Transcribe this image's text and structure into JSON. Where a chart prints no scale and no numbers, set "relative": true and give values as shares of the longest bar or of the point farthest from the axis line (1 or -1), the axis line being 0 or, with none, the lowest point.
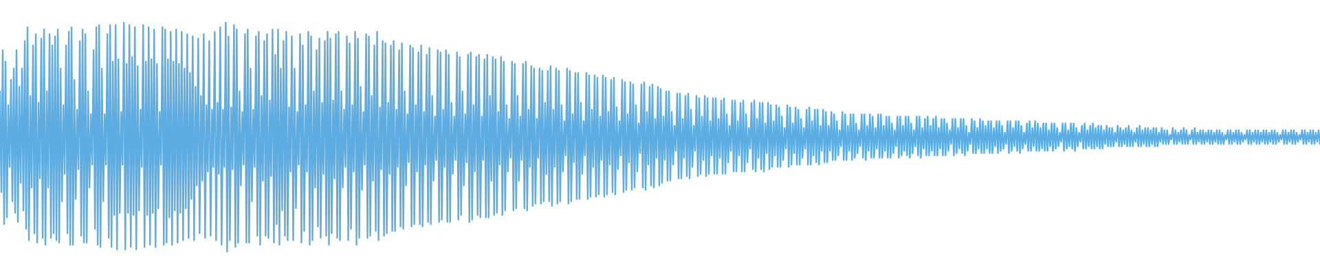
{
  "chart_data": {
    "type": "line",
    "relative": true,
    "color": "#5dade2",
    "categories": [
      null,
      null,
      null,
      null,
      null,
      null,
      null,
      null,
      null,
      null,
      null,
      null,
      null,
      null,
      null,
      null,
      null,
      null,
      null,
      null,
      null,
      null,
      null,
      null,
      null,
      null,
      null,
      null,
      null,
      null,
      null,
      null,
      null,
      null,
      null,
      null,
      null,
      null,
      null,
      null,
      null,
      null,
      null,
      null,
      null,
      null,
      null,
      null,
      null,
      null,
      null,
      null,
      null,
      null,
      null,
      null,
      null,
      null,
      null,
      null,
      null,
      null,
      null,
      null,
      null,
      null,
      null,
      null,
      null,
      null,
      null,
      null,
      null,
      null,
      null,
      null,
      null,
      null,
      null,
      null,
      null,
      null,
      null,
      null,
      null,
      null,
      null,
      null,
      null,
      null,
      null,
      null,
      null,
      null,
      null,
      null,
      null,
      null,
      null,
      null,
      null,
      null,
      null,
      null,
      null,
      null,
      null,
      null,
      null,
      null,
      null,
      null,
      null,
      null,
      null,
      null,
      null,
      null,
      null,
      null,
      null,
      null,
      null,
      null,
      null,
      null,
      null,
      null,
      null,
      null,
      null,
      null,
      null,
      null,
      null,
      null,
      null,
      null,
      null,
      null,
      null,
      null,
      null,
      null,
      null,
      null,
      null,
      null,
      null,
      null,
      null,
      null,
      null,
      null,
      null,
      null,
      null,
      null,
      null,
      null,
      null,
      null,
      null,
      null,
      null,
      null,
      null,
      null,
      null,
      null,
      null,
      null,
      null,
      null,
      null,
      null,
      null,
      null,
      null,
      null,
      null,
      null,
      null,
      null,
      null,
      null,
      null,
      null,
      null,
      null,
      null,
      null,
      null,
      null,
      null,
      null,
      null,
      null,
      null,
      null,
      null,
      null,
      null,
      null,
      null,
      null,
      null,
      null,
      null,
      null,
      null,
      null,
      null,
      null,
      null,
      null,
      null,
      null,
      null,
      null,
      null,
      null,
      null,
      null,
      null,
      null,
      null,
      null,
      null,
      null,
      null,
      null,
      null,
      null,
      null,
      null,
      null,
      null,
      null,
      null,
      null,
      null,
      null,
      null,
      null,
      null,
      null,
      null,
      null,
      null,
      null,
      null,
      null,
      null,
      null,
      null,
      null,
      null,
      null,
      null,
      null,
      null,
      null,
      null,
      null,
      null,
      null,
      null,
      null,
      null,
      null,
      null,
      null,
      null,
      null,
      null,
      null,
      null,
      null,
      null,
      null,
      null,
      null,
      null,
      null,
      null,
      null,
      null,
      null,
      null,
      null,
      null,
      null,
      null,
      null,
      null,
      null,
      null,
      null,
      null,
      null,
      null,
      null,
      null,
      null,
      null,
      null,
      null,
      null,
      null,
      null,
      null,
      null,
      null,
      null,
      null,
      null,
      null,
      null,
      null,
      null,
      null,
      null,
      null,
      null,
      null,
      null,
      null,
      null,
      null,
      null,
      null,
      null,
      null,
      null,
      null,
      null,
      null,
      null,
      null,
      null,
      null,
      null,
      null,
      null,
      null,
      null,
      null,
      null,
      null,
      null,
      null,
      null,
      null,
      null,
      null,
      null,
      null,
      null,
      null,
      null,
      null,
      null,
      null,
      null,
      null,
      null,
      null,
      null,
      null,
      null,
      null,
      null,
      null,
      null,
      null,
      null,
      null,
      null,
      null,
      null,
      null,
      null,
      null,
      null,
      null,
      null,
      null,
      null,
      null,
      null,
      null,
      null,
      null,
      null,
      null,
      null,
      null,
      null,
      null,
      null,
      null,
      null,
      null,
      null,
      null,
      null,
      null,
      null,
      null,
      null,
      null,
      null,
      null,
      null,
      null,
      null,
      null,
      null,
      null,
      null,
      null,
      null,
      null,
      null,
      null,
      null,
      null,
      null,
      null,
      null,
      null,
      null,
      null,
      null,
      null,
      null,
      null,
      null,
      null,
      null,
      null,
      null,
      null,
      null,
      null,
      null,
      null,
      null,
      null,
      null,
      null,
      null,
      null,
      null,
      null,
      null,
      null,
      null,
      null,
      null,
      null,
      null,
      null,
      null,
      null,
      null,
      null,
      null,
      null,
      null,
      null,
      null,
      null,
      null,
      null,
      null,
      null,
      null,
      null,
      null,
      null,
      null,
      null,
      null,
      null,
      null,
      null,
      null,
      null,
      null,
      null,
      null,
      null,
      null,
      null,
      null,
      null,
      null,
      null,
      null,
      null,
      null,
      null,
      null,
      null,
      null,
      null,
      null,
      null,
      null,
      null,
      null,
      null,
      null,
      null,
      null,
      null,
      null,
      null,
      null,
      null,
      null,
      null,
      null,
      null,
      null,
      null,
      null,
      null,
      null,
      null,
      null,
      null,
      null,
      null,
      null,
      null,
      null,
      null,
      null,
      null,
      null,
      null,
      null,
      null,
      null,
      null,
      null,
      null,
      null,
      null,
      null,
      null,
      null,
      null,
      null,
      null,
      null,
      null,
      null,
      null,
      null,
      null,
      null,
      null,
      null,
      null,
      null,
      null,
      null,
      null,
      null,
      null,
      null,
      null,
      null,
      null,
      null,
      null,
      null,
      null,
      null,
      null,
      null,
      null,
      null,
      null,
      null,
      null,
      null,
      null,
      null,
      null,
      null,
      null,
      null,
      null,
      null,
      null,
      null,
      null,
      null,
      null,
      null,
      null,
      null,
      null,
      null,
      null,
      null,
      null,
      null,
      null,
      null,
      null,
      null,
      null,
      null,
      null,
      null,
      null,
      null,
      null,
      null,
      null,
      null,
      null,
      null,
      null,
      null,
      null,
      null,
      null,
      null,
      null,
      null,
      null,
      null,
      null,
      null,
      null,
      null,
      null,
      null,
      null,
      null,
      null,
      null,
      null,
      null,
      null,
      null,
      null,
      null,
      null,
      null,
      null,
      null,
      null,
      null,
      null,
      null,
      null,
      null,
      null,
      null,
      null,
      null,
      null,
      null,
      null,
      null,
      null,
      null,
      null,
      null,
      null,
      null,
      null,
      null,
      null,
      null,
      null,
      null,
      null,
      null,
      null,
      null,
      null,
      null,
      null,
      null,
      null,
      null,
      null,
      null,
      null,
      null,
      null,
      null,
      null,
      null,
      null,
      null,
      null,
      null,
      null,
      null,
      null,
      null,
      null,
      null,
      null,
      null,
      null,
      null,
      null,
      null,
      null,
      null,
      null,
      null,
      null,
      null,
      null,
      null,
      null,
      null,
      null,
      null,
      null,
      null,
      null,
      null,
      null,
      null,
      null,
      null,
      null,
      null,
      null,
      null,
      null,
      null,
      null,
      null,
      null,
      null,
      null,
      null,
      null,
      null,
      null,
      null,
      null,
      null,
      null,
      null,
      null,
      null,
      null,
      null,
      null,
      null,
      null,
      null,
      null,
      null,
      null,
      null,
      null,
      null,
      null,
      null,
      null,
      null,
      null,
      null,
      null,
      null,
      null,
      null,
      null,
      null,
      null,
      null,
      null,
      null,
      null,
      null,
      null,
      null,
      null,
      null,
      null,
      null,
      null,
      null,
      null,
      null,
      null,
      null,
      null,
      null,
      null,
      null,
      null,
      null,
      null,
      null,
      null,
      null,
      null,
      null,
      null,
      null,
      null,
      null,
      null,
      null,
      null,
      null,
      null,
      null,
      null,
      null,
      null,
      null,
      null,
      null,
      null,
      null,
      null,
      null,
      null,
      null,
      null,
      null,
      null,
      null,
      null,
      null,
      null,
      null,
      null,
      null,
      null,
      null,
      null,
      null,
      null,
      null,
      null,
      null,
      null,
      null,
      null,
      null,
      null,
      null,
      null,
      null,
      null,
      null,
      null,
      null,
      null,
      null,
      null,
      null,
      null,
      null,
      null,
      null,
      null,
      null,
      null,
      null,
      null,
      null,
      null,
      null,
      null,
      null,
      null,
      null,
      null,
      null,
      null,
      null,
      null,
      null,
      null,
      null,
      null,
      null,
      null,
      null,
      null,
      null,
      null,
      null,
      null,
      null,
      null,
      null,
      null,
      null,
      null,
      null,
      null,
      null,
      null,
      null,
      null,
      null,
      null,
      null,
      null,
      null,
      null,
      null,
      null,
      null,
      null,
      null,
      null,
      null,
      null,
      null,
      null,
      null,
      null,
      null,
      null,
      null,
      null,
      null,
      null,
      null,
      null,
      null,
      null,
      null,
      null,
      null,
      null,
      null,
      null,
      null,
      null,
      null,
      null,
      null,
      null,
      null,
      null,
      null,
      null
    ],
    "values": [
      0.7,
      0.26,
      0.88,
      0.12,
      0.83,
      0.15,
      0.64,
      0.37,
      0.75,
      0.22,
      0.8,
      0.17,
      0.88,
      0.13,
      0.72,
      0.3,
      0.8,
      0.18,
      0.92,
      0.1,
      0.98,
      0.05,
      0.68,
      0.28,
      0.9,
      0.08,
      0.95,
      0.04,
      0.65,
      0.32,
      0.93,
      0.06,
      0.97,
      0.03,
      0.7,
      0.28,
      0.95,
      0.06,
      0.9,
      0.08,
      0.94,
      0.05,
      0.97,
      0.04,
      0.8,
      0.22,
      0.64,
      0.34,
      0.9,
      0.08,
      0.96,
      0.03,
      0.98,
      0.03,
      0.75,
      0.23,
      0.62,
      0.36,
      0.92,
      0.07,
      0.97,
      0.04,
      0.95,
      0.04,
      0.7,
      0.28,
      0.6,
      0.38,
      0.88,
      0.1,
      0.98,
      0.03,
      0.99,
      0.02,
      0.8,
      0.22,
      0.6,
      0.38,
      0.95,
      0.06,
      0.99,
      0.02,
      0.83,
      0.16,
      0.99,
      0.01,
      0.84,
      0.17,
      0.61,
      0.38,
      1,
      0.01,
      0.82,
      0.17,
      0.99,
      0.02,
      0.85,
      0.16,
      0.98,
      0.01,
      0.81,
      0.18,
      0.62,
      0.37,
      0.99,
      0.02,
      0.83,
      0.16,
      0.98,
      0.03,
      0.84,
      0.17,
      0.97,
      0.02,
      0.82,
      0.19,
      0.61,
      0.38,
      0.98,
      0.03,
      0.97,
      0.04,
      0.84,
      0.15,
      0.96,
      0.03,
      0.83,
      0.18,
      0.97,
      0.04,
      0.82,
      0.17,
      0.96,
      0.05,
      0.8,
      0.19,
      0.95,
      0.06,
      0.78,
      0.23,
      0.94,
      0.05,
      0.72,
      0.29,
      0.93,
      0.08,
      0.68,
      0.31,
      0.95,
      0.06,
      0.64,
      0.35,
      0.92,
      0.07,
      0.62,
      0.37,
      0.96,
      0.05,
      0.65,
      0.34,
      0.98,
      0.03,
      0.62,
      0.37,
      1,
      0,
      0.94,
      0.05,
      0.63,
      0.36,
      0.99,
      0.02,
      0.97,
      0.04,
      0.7,
      0.29,
      0.61,
      0.38,
      0.95,
      0.04,
      0.97,
      0.04,
      0.8,
      0.22,
      0.62,
      0.37,
      0.94,
      0.07,
      0.96,
      0.03,
      0.68,
      0.31,
      0.92,
      0.07,
      0.95,
      0.06,
      0.66,
      0.33,
      0.97,
      0.04,
      0.86,
      0.12,
      0.97,
      0.03,
      0.8,
      0.18,
      0.92,
      0.07,
      0.96,
      0.05,
      0.63,
      0.35,
      0.94,
      0.05,
      0.8,
      0.19,
      0.61,
      0.38,
      0.95,
      0.04,
      0.9,
      0.09,
      0.64,
      0.35,
      0.96,
      0.03,
      0.94,
      0.05,
      0.7,
      0.28,
      0.88,
      0.11,
      0.93,
      0.06,
      0.65,
      0.34,
      0.92,
      0.07,
      0.96,
      0.03,
      0.93,
      0.08,
      0.66,
      0.32,
      0.95,
      0.06,
      0.96,
      0.05,
      0.7,
      0.28,
      0.62,
      0.37,
      0.94,
      0.05,
      0.91,
      0.1,
      0.64,
      0.35,
      0.96,
      0.03,
      0.93,
      0.06,
      0.72,
      0.27,
      0.61,
      0.38,
      0.95,
      0.06,
      0.94,
      0.07,
      0.68,
      0.31,
      0.9,
      0.09,
      0.96,
      0.05,
      0.63,
      0.36,
      0.92,
      0.07,
      0.91,
      0.08,
      0.65,
      0.34,
      0.9,
      0.09,
      0.92,
      0.09,
      0.62,
      0.37,
      0.88,
      0.11,
      0.91,
      0.1,
      0.7,
      0.29,
      0.6,
      0.39,
      0.9,
      0.11,
      0.89,
      0.12,
      0.64,
      0.35,
      0.87,
      0.12,
      0.9,
      0.11,
      0.61,
      0.38,
      0.86,
      0.13,
      0.89,
      0.12,
      0.68,
      0.31,
      0.59,
      0.4,
      0.88,
      0.13,
      0.87,
      0.14,
      0.62,
      0.37,
      0.88,
      0.13,
      0.86,
      0.13,
      0.65,
      0.34,
      0.59,
      0.4,
      0.87,
      0.14,
      0.85,
      0.16,
      0.7,
      0.29,
      0.6,
      0.39,
      0.86,
      0.13,
      0.87,
      0.14,
      0.64,
      0.35,
      0.85,
      0.16,
      0.86,
      0.15,
      0.59,
      0.4,
      0.84,
      0.15,
      0.86,
      0.15,
      0.68,
      0.31,
      0.85,
      0.16,
      0.84,
      0.17,
      0.61,
      0.38,
      0.85,
      0.16,
      0.83,
      0.18,
      0.64,
      0.35,
      0.58,
      0.41,
      0.83,
      0.18,
      0.82,
      0.19,
      0.68,
      0.31,
      0.59,
      0.4,
      0.82,
      0.19,
      0.83,
      0.18,
      0.62,
      0.37,
      0.81,
      0.2,
      0.8,
      0.21,
      0.58,
      0.41,
      0.8,
      0.21,
      0.79,
      0.22,
      0.65,
      0.34,
      0.79,
      0.22,
      0.81,
      0.2,
      0.62,
      0.37,
      0.8,
      0.21,
      0.79,
      0.22,
      0.64,
      0.35,
      0.57,
      0.42,
      0.8,
      0.21,
      0.79,
      0.22,
      0.6,
      0.39,
      0.78,
      0.23,
      0.78,
      0.23,
      0.65,
      0.34,
      0.57,
      0.42,
      0.78,
      0.23,
      0.77,
      0.24,
      0.62,
      0.37,
      0.77,
      0.24,
      0.76,
      0.25,
      0.59,
      0.4,
      0.77,
      0.24,
      0.76,
      0.25,
      0.61,
      0.38,
      0.75,
      0.26,
      0.76,
      0.25,
      0.63,
      0.36,
      0.57,
      0.42,
      0.75,
      0.26,
      0.74,
      0.27,
      0.6,
      0.39,
      0.74,
      0.27,
      0.73,
      0.28,
      0.64,
      0.35,
      0.56,
      0.43,
      0.73,
      0.28,
      0.74,
      0.27,
      0.61,
      0.38,
      0.72,
      0.29,
      0.73,
      0.28,
      0.58,
      0.41,
      0.72,
      0.29,
      0.71,
      0.3,
      0.59,
      0.4,
      0.7,
      0.31,
      0.7,
      0.31,
      0.61,
      0.38,
      0.55,
      0.44,
      0.69,
      0.32,
      0.69,
      0.32,
      0.58,
      0.41,
      0.68,
      0.33,
      0.69,
      0.32,
      0.62,
      0.37,
      0.55,
      0.44,
      0.68,
      0.33,
      0.67,
      0.34,
      0.59,
      0.4,
      0.68,
      0.33,
      0.67,
      0.34,
      0.57,
      0.42,
      0.67,
      0.34,
      0.67,
      0.34,
      0.58,
      0.41,
      0.66,
      0.34,
      0.67,
      0.34,
      0.6,
      0.39,
      0.55,
      0.44,
      0.66,
      0.35,
      0.66,
      0.35,
      0.57,
      0.42,
      0.65,
      0.35,
      0.66,
      0.35,
      0.6,
      0.39,
      0.54,
      0.45,
      0.65,
      0.36,
      0.66,
      0.35,
      0.58,
      0.41,
      0.65,
      0.36,
      0.65,
      0.35,
      0.56,
      0.43,
      0.65,
      0.36,
      0.64,
      0.37,
      0.57,
      0.42,
      0.64,
      0.37,
      0.63,
      0.37,
      0.59,
      0.4,
      0.54,
      0.45,
      0.64,
      0.37,
      0.63,
      0.38,
      0.56,
      0.43,
      0.63,
      0.38,
      0.62,
      0.38,
      0.58,
      0.41,
      0.54,
      0.45,
      0.62,
      0.38,
      0.63,
      0.38,
      0.57,
      0.42,
      0.62,
      0.39,
      0.62,
      0.38,
      0.55,
      0.44,
      0.62,
      0.39,
      0.61,
      0.39,
      0.55,
      0.44,
      0.61,
      0.4,
      0.6,
      0.4,
      0.57,
      0.42,
      0.53,
      0.46,
      0.61,
      0.4,
      0.6,
      0.4,
      0.55,
      0.44,
      0.6,
      0.4,
      0.6,
      0.41,
      0.56,
      0.43,
      0.53,
      0.46,
      0.6,
      0.41,
      0.6,
      0.4,
      0.55,
      0.44,
      0.6,
      0.41,
      0.59,
      0.41,
      0.54,
      0.45,
      0.6,
      0.41,
      0.6,
      0.41,
      0.55,
      0.44,
      0.59,
      0.41,
      0.59,
      0.41,
      0.56,
      0.43,
      0.53,
      0.46,
      0.59,
      0.41,
      0.59,
      0.42,
      0.55,
      0.44,
      0.59,
      0.42,
      0.59,
      0.41,
      0.56,
      0.43,
      0.53,
      0.46,
      0.59,
      0.42,
      0.59,
      0.41,
      0.54,
      0.45,
      0.58,
      0.42,
      0.59,
      0.42,
      0.55,
      0.44,
      0.58,
      0.42,
      0.59,
      0.42,
      0.54,
      0.45,
      0.58,
      0.42,
      0.58,
      0.42,
      0.56,
      0.44,
      0.53,
      0.47,
      0.58,
      0.42,
      0.58,
      0.43,
      0.54,
      0.45,
      0.58,
      0.43,
      0.58,
      0.42,
      0.55,
      0.44,
      0.52,
      0.47,
      0.58,
      0.43,
      0.57,
      0.43,
      0.54,
      0.45,
      0.58,
      0.43,
      0.57,
      0.43,
      0.55,
      0.45,
      0.57,
      0.43,
      0.57,
      0.43,
      0.54,
      0.46,
      0.57,
      0.43,
      0.57,
      0.44,
      0.55,
      0.45,
      0.52,
      0.47,
      0.57,
      0.43,
      0.57,
      0.44,
      0.54,
      0.46,
      0.57,
      0.44,
      0.57,
      0.43,
      0.55,
      0.45,
      0.52,
      0.47,
      0.56,
      0.44,
      0.57,
      0.44,
      0.54,
      0.46,
      0.57,
      0.44,
      0.56,
      0.44,
      0.54,
      0.45,
      0.56,
      0.44,
      0.56,
      0.44,
      0.53,
      0.46,
      0.56,
      0.44,
      0.56,
      0.45,
      0.54,
      0.46,
      0.52,
      0.48,
      0.56,
      0.44,
      0.56,
      0.45,
      0.53,
      0.46,
      0.56,
      0.45,
      0.56,
      0.44,
      0.54,
      0.46,
      0.52,
      0.48,
      0.55,
      0.45,
      0.56,
      0.45,
      0.53,
      0.46,
      0.55,
      0.45,
      0.56,
      0.45,
      0.54,
      0.46,
      0.55,
      0.45,
      0.55,
      0.45,
      0.53,
      0.47,
      0.55,
      0.46,
      0.54,
      0.46,
      0.54,
      0.46,
      0.52,
      0.48,
      0.55,
      0.46,
      0.54,
      0.46,
      0.53,
      0.47,
      0.54,
      0.46,
      0.55,
      0.46,
      0.53,
      0.46,
      0.52,
      0.48,
      0.54,
      0.46,
      0.55,
      0.46,
      0.53,
      0.47,
      0.54,
      0.46,
      0.54,
      0.46,
      0.53,
      0.47,
      0.54,
      0.46,
      0.54,
      0.46,
      0.52,
      0.48,
      0.54,
      0.47,
      0.53,
      0.47,
      0.53,
      0.47,
      0.51,
      0.49,
      0.54,
      0.47,
      0.53,
      0.47,
      0.52,
      0.48,
      0.53,
      0.47,
      0.54,
      0.47,
      0.53,
      0.47,
      0.51,
      0.49,
      0.53,
      0.47,
      0.54,
      0.47,
      0.52,
      0.48,
      0.53,
      0.47,
      0.53,
      0.47,
      0.52,
      0.48,
      0.53,
      0.47,
      0.53,
      0.47,
      0.52,
      0.48,
      0.53,
      0.47,
      0.53,
      0.47,
      0.52,
      0.47,
      0.51,
      0.49,
      0.53,
      0.47,
      0.53,
      0.47,
      0.52,
      0.48,
      0.53,
      0.47,
      0.53,
      0.47,
      0.52,
      0.48,
      0.51,
      0.49,
      0.53,
      0.47,
      0.53,
      0.47,
      0.52,
      0.48,
      0.53,
      0.47,
      0.53,
      0.47,
      0.52,
      0.48,
      0.53,
      0.47,
      0.53,
      0.47,
      0.52,
      0.48,
      0.53,
      0.47,
      0.53,
      0.47,
      0.52,
      0.48,
      0.51,
      0.49,
      0.53,
      0.47,
      0.53,
      0.47,
      0.52,
      0.48,
      0.53,
      0.47,
      0.53,
      0.47,
      0.52,
      0.48,
      0.51,
      0.49,
      0.53,
      0.47,
      0.53,
      0.47,
      0.52,
      0.48,
      0.53,
      0.47,
      0.53,
      0.47,
      0.52,
      0.48,
      0.53,
      0.47
    ]
  }
}
